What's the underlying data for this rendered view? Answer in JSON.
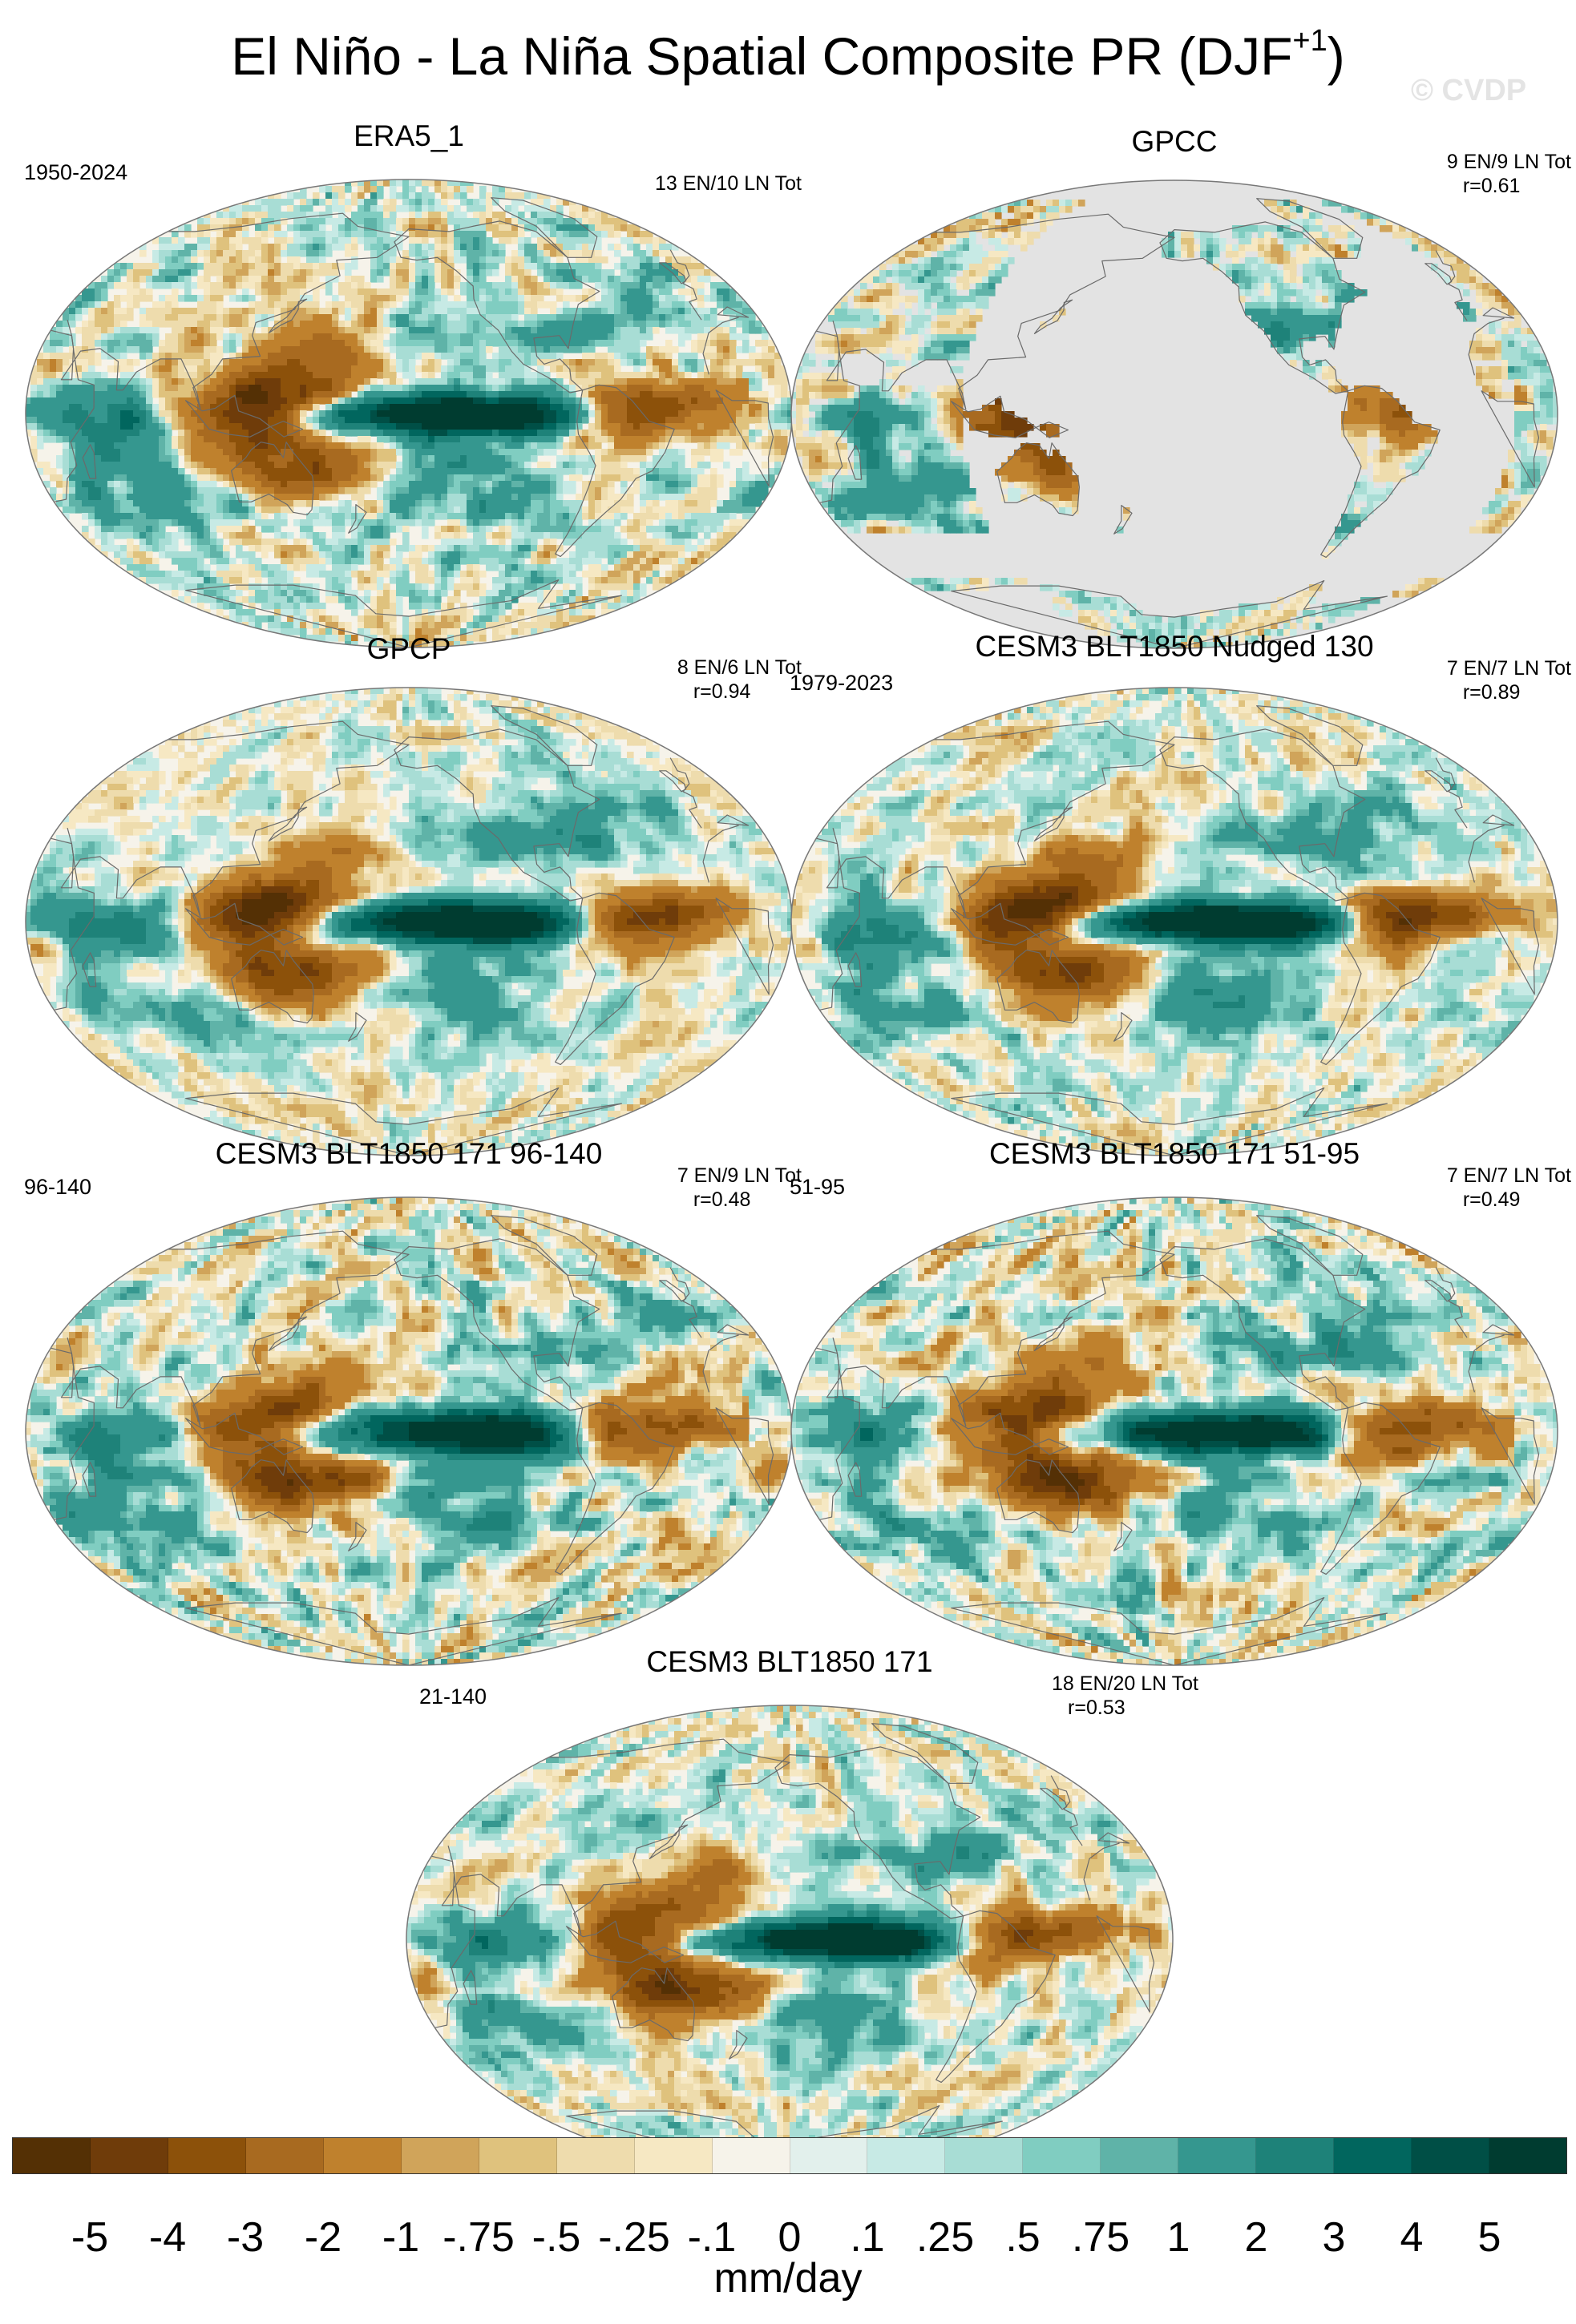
{
  "title": {
    "main": "El Niño - La Niña Spatial Composite PR (DJF",
    "superscript": "+1",
    "close": ")"
  },
  "watermark": "© CVDP",
  "panels": [
    {
      "title": "ERA5_1",
      "left_text": "1950-2024",
      "right_line1": "13 EN/10 LN Tot",
      "right_line2": "",
      "land_only": false,
      "fields": {
        "pacific": 1.0,
        "warmpool": -0.9,
        "atl": -0.8,
        "seasia": -0.7,
        "spcz": -0.6,
        "noise": 0.6
      }
    },
    {
      "title": "GPCC",
      "left_text": "",
      "right_line1": "9 EN/9 LN Tot",
      "right_line2": "r=0.61",
      "land_only": true,
      "fields": {
        "pacific": 0.0,
        "warmpool": -0.8,
        "atl": -0.6,
        "seasia": -0.8,
        "spcz": -0.3,
        "noise": 0.7
      }
    },
    {
      "title": "GPCP",
      "left_text": "",
      "right_line1": "8 EN/6 LN Tot",
      "right_line2": "r=0.94",
      "land_only": false,
      "fields": {
        "pacific": 1.0,
        "warmpool": -0.95,
        "atl": -0.8,
        "seasia": -0.6,
        "spcz": -0.7,
        "noise": 0.45
      }
    },
    {
      "title": "CESM3 BLT1850 Nudged 130",
      "left_text": "1979-2023",
      "right_line1": "7 EN/7 LN Tot",
      "right_line2": "r=0.89",
      "land_only": false,
      "fields": {
        "pacific": 1.0,
        "warmpool": -1.0,
        "atl": -0.9,
        "seasia": -0.8,
        "spcz": -0.8,
        "noise": 0.5
      }
    },
    {
      "title": "CESM3 BLT1850 171 96-140",
      "left_text": "96-140",
      "right_line1": "7 EN/9 LN Tot",
      "right_line2": "r=0.48",
      "land_only": false,
      "fields": {
        "pacific": 0.95,
        "warmpool": -0.7,
        "atl": -0.7,
        "seasia": -0.6,
        "spcz": -0.8,
        "noise": 0.7
      }
    },
    {
      "title": "CESM3 BLT1850 171 51-95",
      "left_text": "51-95",
      "right_line1": "7 EN/7 LN Tot",
      "right_line2": "r=0.49",
      "land_only": false,
      "fields": {
        "pacific": 0.95,
        "warmpool": -0.75,
        "atl": -0.8,
        "seasia": -0.7,
        "spcz": -0.85,
        "noise": 0.7
      }
    },
    {
      "title": "CESM3 BLT1850 171",
      "left_text": "21-140",
      "right_line1": "18 EN/20 LN Tot",
      "right_line2": "r=0.53",
      "land_only": false,
      "fields": {
        "pacific": 0.95,
        "warmpool": -0.7,
        "atl": -0.75,
        "seasia": -0.65,
        "spcz": -0.8,
        "noise": 0.55
      }
    }
  ],
  "colorbar": {
    "colors": [
      "#543005",
      "#6f3c0a",
      "#8c510a",
      "#a86a20",
      "#bf812d",
      "#d0a45a",
      "#dfc27d",
      "#eedcad",
      "#f6e8c3",
      "#f6f3ea",
      "#e2f0ec",
      "#c7eae5",
      "#a8ddd5",
      "#80cdc1",
      "#5fb3a8",
      "#35978f",
      "#1e8279",
      "#01665e",
      "#004f46",
      "#003c30"
    ],
    "labels": [
      "-5",
      "-4",
      "-3",
      "-2",
      "-1",
      "-.75",
      "-.5",
      "-.25",
      "-.1",
      "0",
      ".1",
      ".25",
      ".5",
      ".75",
      "1",
      "2",
      "3",
      "4",
      "5"
    ],
    "units": "mm/day"
  }
}
